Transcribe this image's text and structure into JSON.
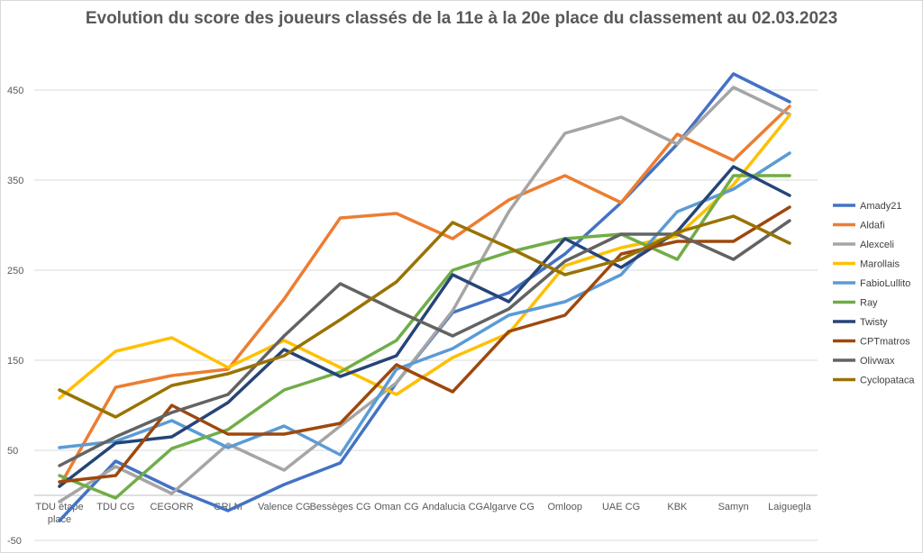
{
  "chart_data": {
    "type": "line",
    "title": "Evolution du score des joueurs classés de la 11e à la 20e place du classement au 02.03.2023",
    "xlabel": "",
    "ylabel": "",
    "categories": [
      "TDU étape place",
      "TDU CG",
      "CEGORR",
      "GRLM",
      "Valence CG",
      "Bessèges CG",
      "Oman CG",
      "Andalucia CG",
      "Algarve CG",
      "Omloop",
      "UAE CG",
      "KBK",
      "Samyn",
      "Laiguegla"
    ],
    "ylim": [
      -50,
      510
    ],
    "yticks": [
      -50,
      50,
      150,
      250,
      350,
      450
    ],
    "grid": true,
    "legend_position": "right",
    "series": [
      {
        "name": "Amady21",
        "color": "#4472c4",
        "values": [
          -28,
          38,
          8,
          -17,
          12,
          36,
          125,
          203,
          225,
          268,
          325,
          390,
          468,
          437
        ]
      },
      {
        "name": "Aldafi",
        "color": "#ed7d31",
        "values": [
          10,
          120,
          133,
          140,
          218,
          308,
          313,
          285,
          328,
          355,
          325,
          401,
          372,
          432
        ]
      },
      {
        "name": "Alexceli",
        "color": "#a5a5a5",
        "values": [
          -7,
          32,
          2,
          57,
          28,
          77,
          125,
          205,
          315,
          402,
          420,
          390,
          453,
          423
        ]
      },
      {
        "name": "Marollais",
        "color": "#ffc000",
        "values": [
          108,
          160,
          175,
          142,
          172,
          142,
          112,
          153,
          180,
          255,
          275,
          288,
          345,
          422
        ]
      },
      {
        "name": "FabioLullito",
        "color": "#5b9bd5",
        "values": [
          53,
          60,
          83,
          53,
          77,
          45,
          140,
          163,
          200,
          215,
          245,
          315,
          340,
          380
        ]
      },
      {
        "name": "Ray",
        "color": "#70ad47",
        "values": [
          22,
          -3,
          52,
          73,
          117,
          137,
          172,
          250,
          270,
          285,
          290,
          262,
          355,
          355
        ]
      },
      {
        "name": "Twisty",
        "color": "#264478",
        "values": [
          10,
          58,
          65,
          103,
          162,
          132,
          155,
          245,
          215,
          285,
          253,
          293,
          365,
          333
        ]
      },
      {
        "name": "CPTmatros",
        "color": "#9e480e",
        "values": [
          15,
          22,
          100,
          68,
          68,
          80,
          145,
          115,
          182,
          200,
          268,
          282,
          282,
          320
        ]
      },
      {
        "name": "Olivwax",
        "color": "#636363",
        "values": [
          33,
          65,
          92,
          112,
          177,
          235,
          205,
          177,
          207,
          260,
          290,
          290,
          262,
          305
        ]
      },
      {
        "name": "Cyclopataca",
        "color": "#997300",
        "values": [
          117,
          87,
          122,
          135,
          155,
          195,
          237,
          303,
          275,
          245,
          262,
          292,
          310,
          280
        ]
      }
    ]
  }
}
